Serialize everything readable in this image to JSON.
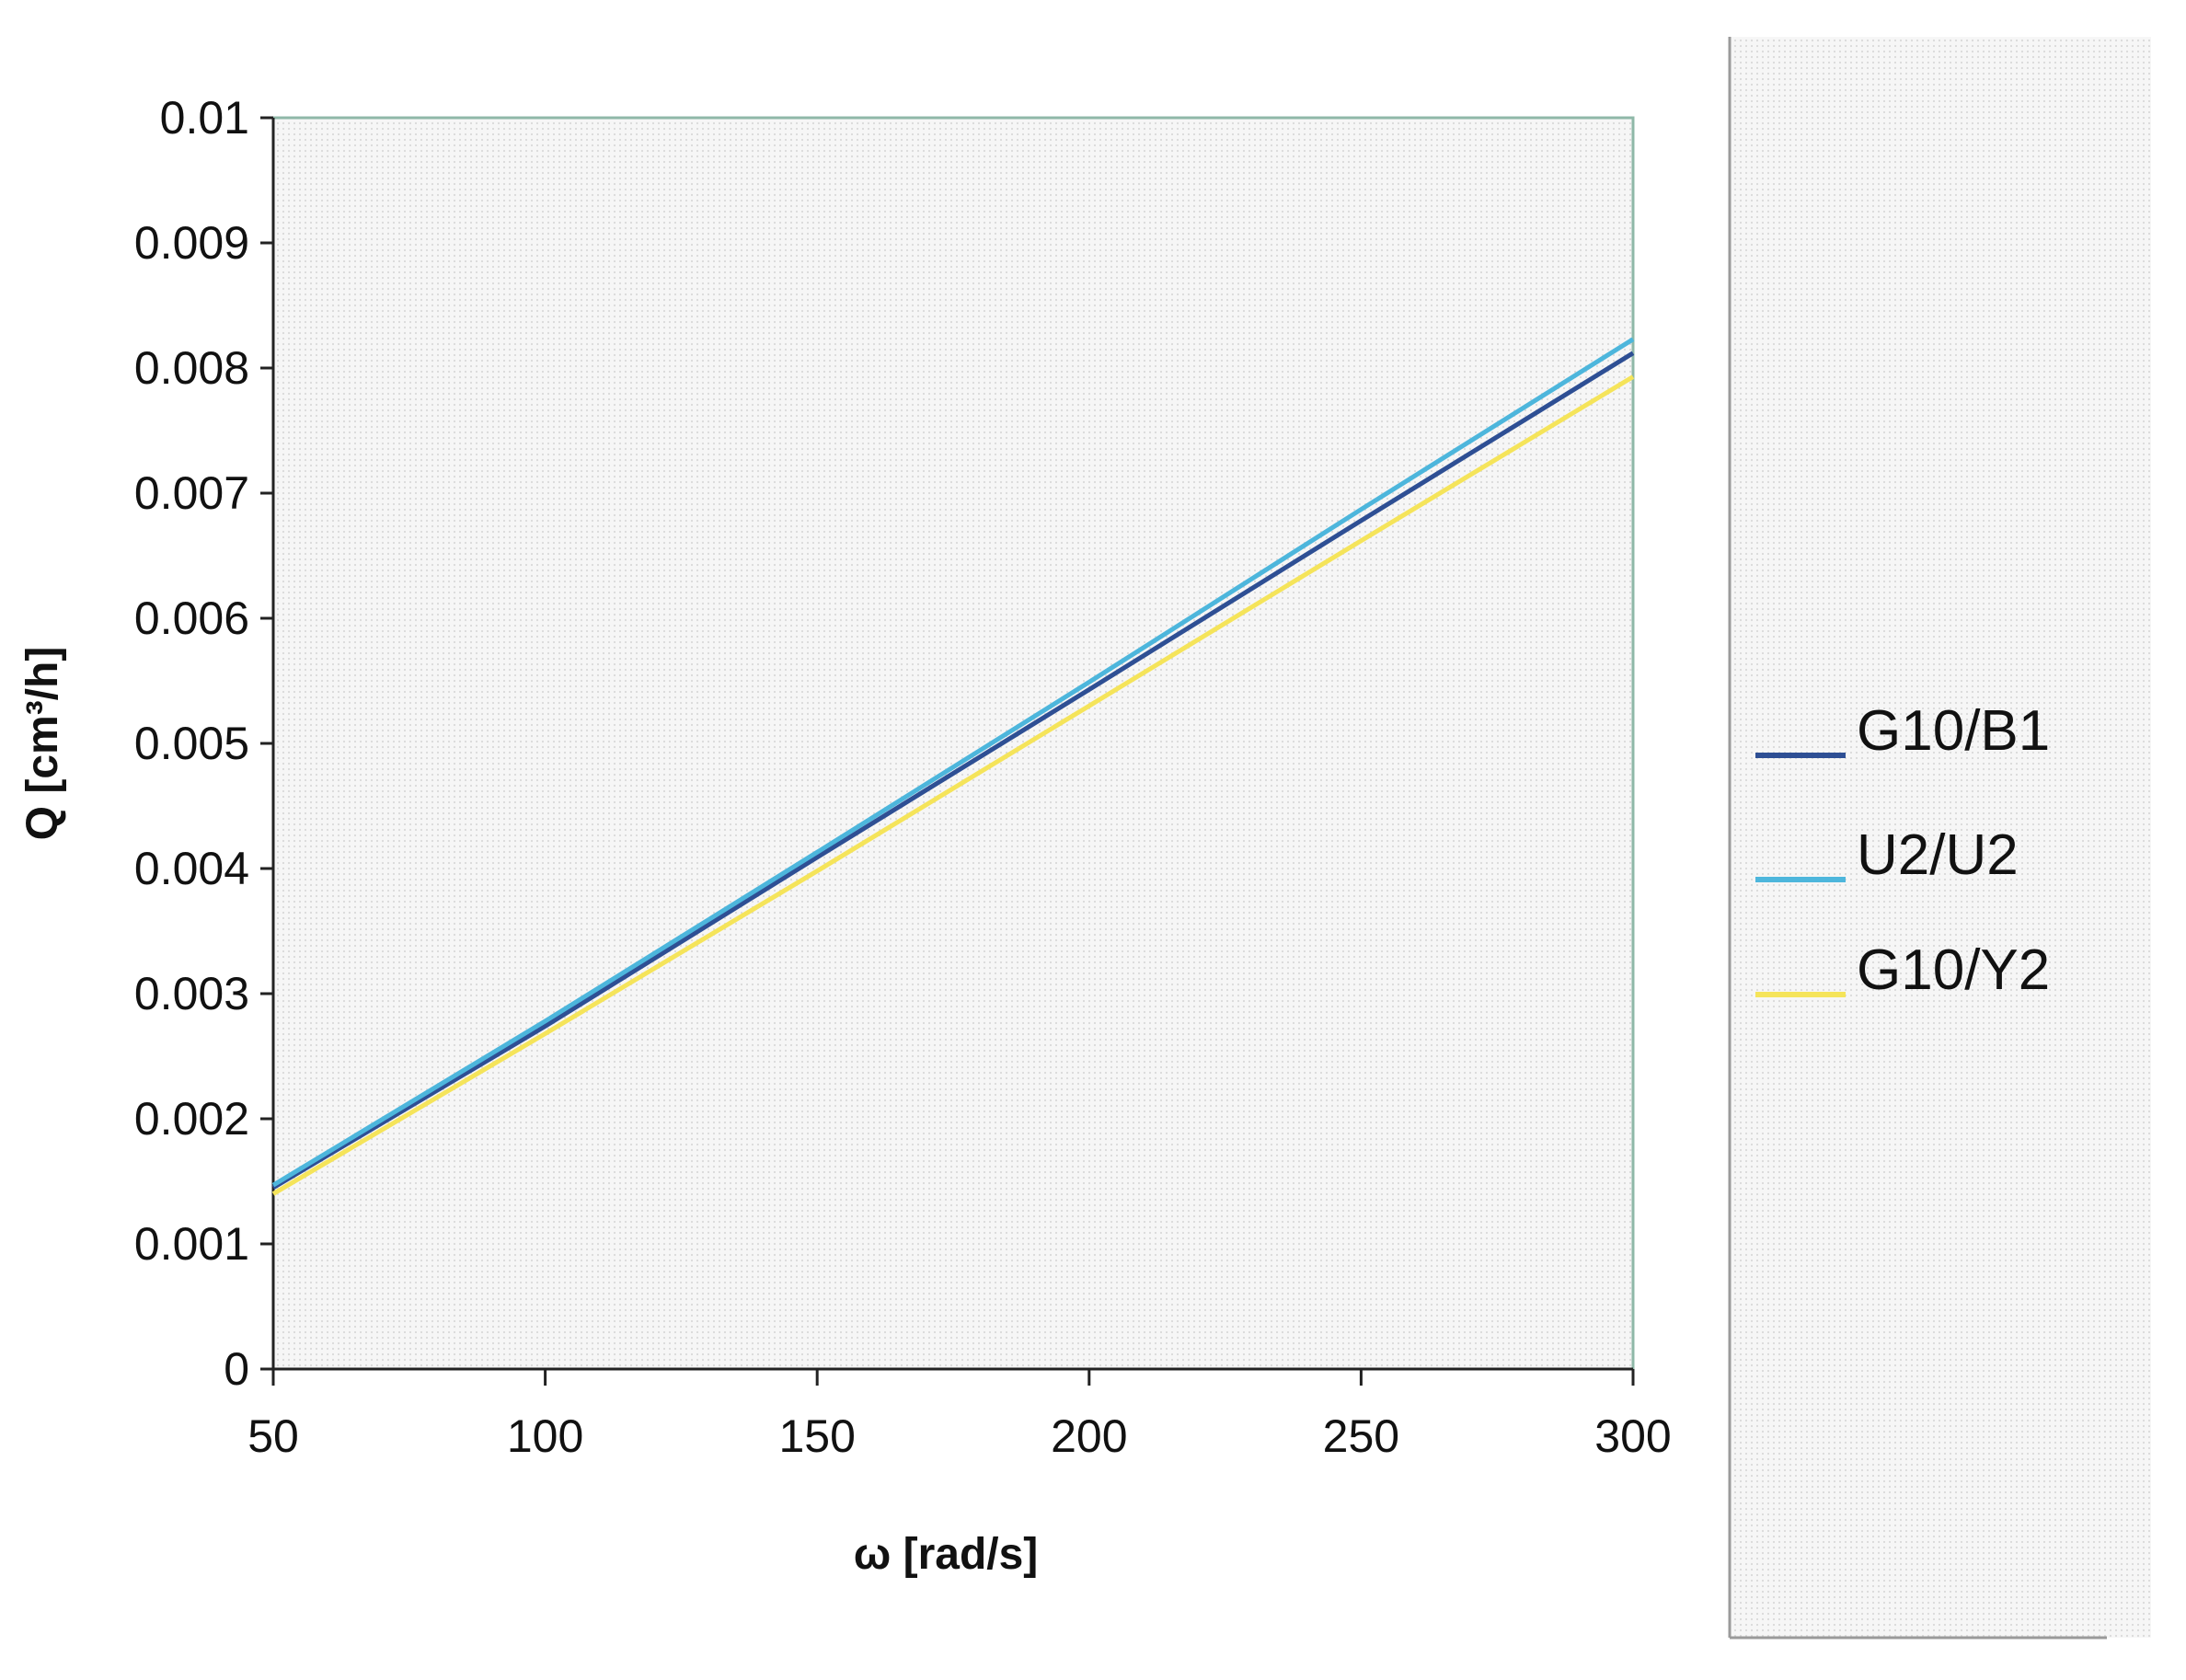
{
  "chart_data": {
    "type": "line",
    "title": "",
    "xlabel": "ω [rad/s]",
    "ylabel": "Q [cm³/h]",
    "xlim": [
      50,
      300
    ],
    "ylim": [
      0,
      0.01
    ],
    "x_ticks": [
      "50",
      "100",
      "150",
      "200",
      "250",
      "300"
    ],
    "y_ticks": [
      "0",
      "0.001",
      "0.002",
      "0.003",
      "0.004",
      "0.005",
      "0.006",
      "0.007",
      "0.008",
      "0.009",
      "0.01"
    ],
    "grid": false,
    "legend_placement": "right",
    "series": [
      {
        "name": "G10/B1",
        "color": "#2e4f94",
        "x": [
          50,
          100,
          150,
          200,
          250,
          300
        ],
        "values": [
          0.00145,
          0.00274,
          0.00409,
          0.00543,
          0.00678,
          0.00812
        ]
      },
      {
        "name": "U2/U2",
        "color": "#4db6dc",
        "x": [
          50,
          100,
          150,
          200,
          250,
          300
        ],
        "values": [
          0.00147,
          0.00278,
          0.00413,
          0.00549,
          0.00687,
          0.00823
        ]
      },
      {
        "name": "G10/Y2",
        "color": "#f5e45a",
        "x": [
          50,
          100,
          150,
          200,
          250,
          300
        ],
        "values": [
          0.0014,
          0.00268,
          0.00398,
          0.0053,
          0.00662,
          0.00793
        ]
      }
    ]
  }
}
